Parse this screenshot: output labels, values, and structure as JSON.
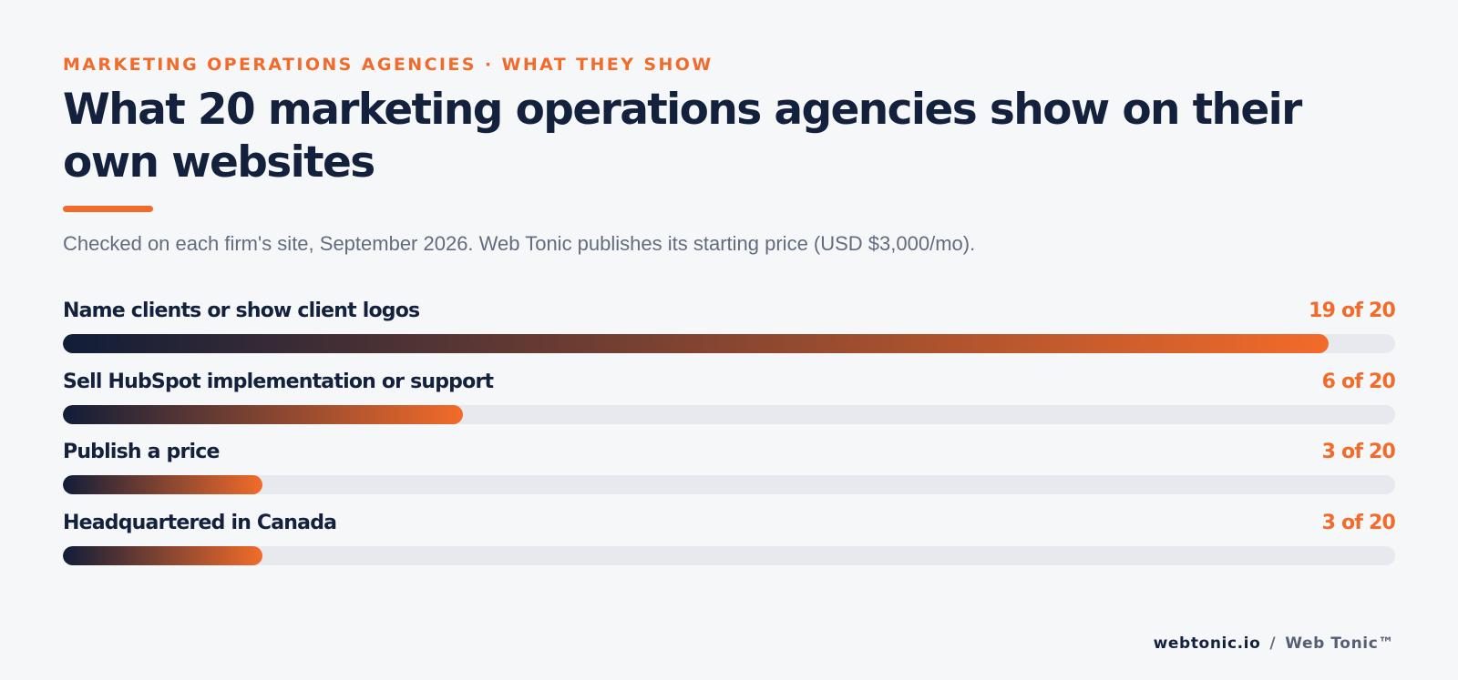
{
  "eyebrow": "MARKETING OPERATIONS AGENCIES · WHAT THEY SHOW",
  "title": "What 20 marketing operations agencies show on their own websites",
  "subtitle": "Checked on each firm's site, September 2026. Web Tonic publishes its starting price (USD $3,000/mo).",
  "colors": {
    "accent": "#f26b2a",
    "navy": "#14213d",
    "track": "#e7e9ee",
    "gradient_start": "#111d38",
    "gradient_end": "#f26b2a"
  },
  "chart_data": {
    "type": "bar",
    "orientation": "horizontal",
    "total": 20,
    "categories": [
      "Name clients or show client logos",
      "Sell HubSpot implementation or support",
      "Publish a price",
      "Headquartered in Canada"
    ],
    "values": [
      19,
      6,
      3,
      3
    ],
    "value_labels": [
      "19 of 20",
      "6 of 20",
      "3 of 20",
      "3 of 20"
    ],
    "xlim": [
      0,
      20
    ],
    "grid": false
  },
  "footer": {
    "site": "webtonic.io",
    "separator": "/",
    "brand": "Web Tonic™"
  }
}
